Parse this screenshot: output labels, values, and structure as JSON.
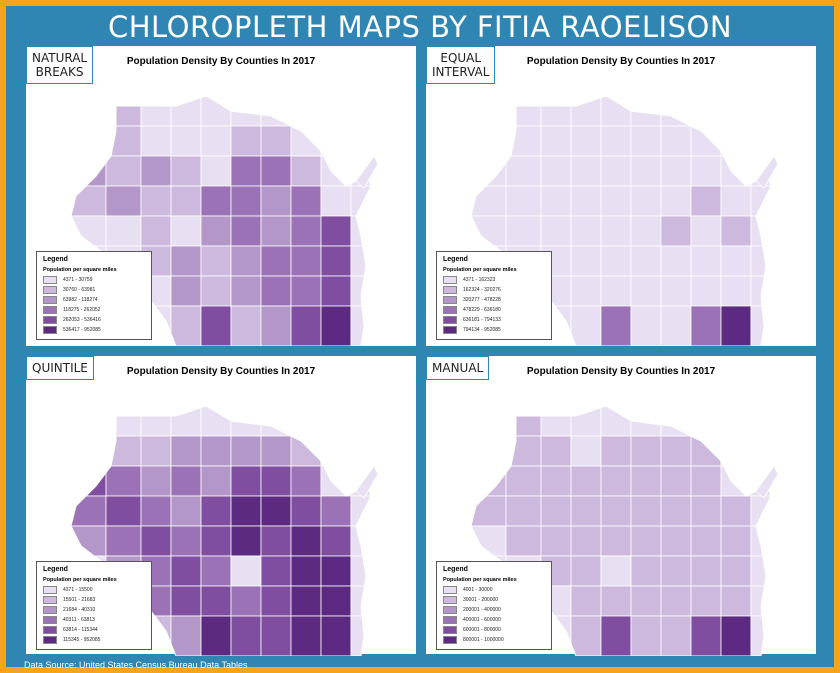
{
  "title": "CHLOROPLETH MAPS BY FITIA RAOELISON",
  "source": "Data Source: United States Census Bureau Data Tables",
  "palette": [
    "#e8dff2",
    "#cdb8de",
    "#b497c9",
    "#9b72b6",
    "#7f4ea0",
    "#5c2a80"
  ],
  "panels": [
    {
      "method": "NATURAL\nBREAKS",
      "map_title": "Population Density By Counties In 2017",
      "legend_title": "Legend",
      "legend_sub": "Population per square miles",
      "classes": [
        "4371 - 30759",
        "30760 - 63981",
        "63982 - 118274",
        "118275 - 262052",
        "262053 - 536416",
        "536417 - 952085"
      ]
    },
    {
      "method": "EQUAL\nINTERVAL",
      "map_title": "Population Density By Counties In 2017",
      "legend_title": "Legend",
      "legend_sub": "Population per square miles",
      "classes": [
        "4371 - 162323",
        "162324 - 320276",
        "320277 - 478228",
        "478229 - 636180",
        "636181 - 794133",
        "794134 - 952085"
      ]
    },
    {
      "method": "QUINTILE",
      "map_title": "Population Density By Counties In 2017",
      "legend_title": "Legend",
      "legend_sub": "Population per square miles",
      "classes": [
        "4371 - 15500",
        "15501 - 21683",
        "21684 - 40310",
        "40311 - 63813",
        "63814 - 115344",
        "115345 - 952085"
      ]
    },
    {
      "method": "MANUAL",
      "map_title": "Population Density By Counties In 2017",
      "legend_title": "Legend",
      "legend_sub": "Population per square miles",
      "classes": [
        "4001 - 30000",
        "30001 - 200000",
        "200001 - 400000",
        "400001 - 600000",
        "600001 - 800000",
        "800001 - 1000000"
      ]
    }
  ]
}
